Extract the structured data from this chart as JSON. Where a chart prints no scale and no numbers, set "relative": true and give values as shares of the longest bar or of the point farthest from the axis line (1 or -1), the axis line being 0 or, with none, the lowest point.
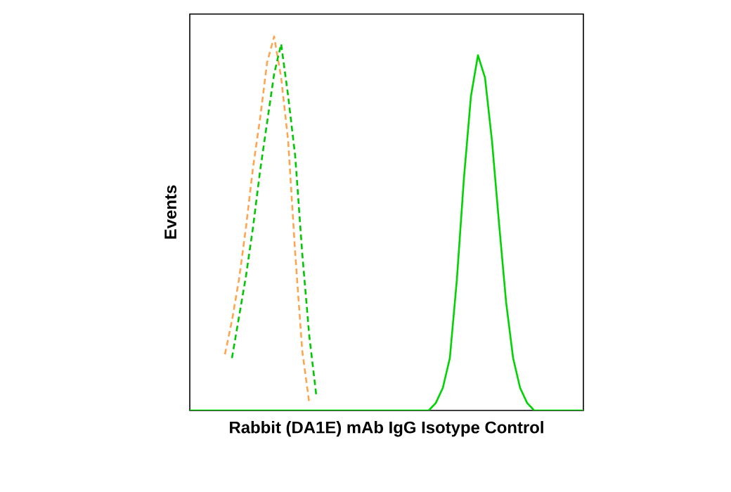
{
  "chart_data": {
    "type": "line",
    "relative": true,
    "xlabel": "Rabbit (DA1E) mAb IgG Isotype Control",
    "ylabel": "Events",
    "categories": [
      null,
      null,
      null,
      null,
      null,
      null,
      null,
      null,
      null,
      null,
      null,
      null,
      null,
      null,
      null,
      null,
      null,
      null,
      null,
      null,
      null,
      null,
      null,
      null,
      null,
      null,
      null,
      null,
      null,
      null,
      null,
      null,
      null,
      null,
      null,
      null,
      null,
      null,
      null,
      null,
      null,
      null,
      null,
      null,
      null,
      null,
      null,
      null,
      null,
      null,
      null,
      null,
      null,
      null,
      null,
      null,
      null
    ],
    "series": [
      {
        "color": "#ffa54f",
        "line_style": "dashed",
        "values": [
          null,
          null,
          null,
          null,
          null,
          0.15,
          0.24,
          0.35,
          0.49,
          0.65,
          0.78,
          0.93,
          1.0,
          0.89,
          0.72,
          0.42,
          0.16,
          0.02,
          null,
          null,
          null,
          null,
          null,
          null,
          null,
          null,
          null,
          null,
          null,
          null,
          null,
          null,
          null,
          null,
          null,
          null,
          null,
          null,
          null,
          null,
          null,
          null,
          null,
          null,
          null,
          null,
          null,
          null,
          null,
          null,
          null,
          null,
          null,
          null,
          null,
          null,
          null
        ]
      },
      {
        "color": "#00c800",
        "line_style": "dashed",
        "values": [
          null,
          null,
          null,
          null,
          null,
          null,
          0.14,
          0.25,
          0.36,
          0.49,
          0.64,
          0.77,
          0.9,
          0.98,
          0.84,
          0.68,
          0.42,
          0.2,
          0.04,
          null,
          null,
          null,
          null,
          null,
          null,
          null,
          null,
          null,
          null,
          null,
          null,
          null,
          null,
          null,
          null,
          null,
          null,
          null,
          null,
          null,
          null,
          null,
          null,
          null,
          null,
          null,
          null,
          null,
          null,
          null,
          null,
          null,
          null,
          null,
          null,
          null,
          null
        ]
      },
      {
        "color": "#00d400",
        "line_style": "solid",
        "values": [
          0,
          0,
          0,
          0,
          0,
          0,
          0,
          0,
          0,
          0,
          0,
          0,
          0,
          0,
          0,
          0,
          0,
          0,
          0,
          0,
          0,
          0,
          0,
          0,
          0,
          0,
          0,
          0,
          0,
          0,
          0,
          0,
          0,
          0,
          0,
          0.02,
          0.06,
          0.14,
          0.35,
          0.62,
          0.84,
          0.95,
          0.89,
          0.72,
          0.5,
          0.29,
          0.14,
          0.06,
          0.02,
          0,
          0,
          0,
          0,
          0,
          0,
          0,
          0
        ]
      }
    ]
  }
}
